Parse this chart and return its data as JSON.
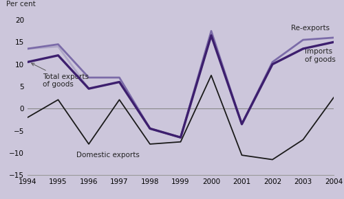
{
  "years": [
    1994,
    1995,
    1996,
    1997,
    1998,
    1999,
    2000,
    2001,
    2002,
    2003,
    2004
  ],
  "re_exports": [
    13.5,
    14.5,
    7.0,
    7.0,
    -4.5,
    -6.5,
    17.5,
    -3.5,
    10.5,
    15.5,
    16.0
  ],
  "imports_of_goods": [
    13.5,
    14.0,
    4.5,
    6.0,
    -4.5,
    -6.5,
    16.5,
    -3.5,
    10.0,
    13.5,
    15.0
  ],
  "total_exports": [
    10.5,
    12.0,
    4.5,
    6.0,
    -4.5,
    -6.5,
    16.5,
    -3.5,
    10.0,
    13.5,
    15.0
  ],
  "domestic_exports": [
    -2.0,
    2.0,
    -8.0,
    2.0,
    -8.0,
    -7.5,
    7.5,
    -10.5,
    -11.5,
    -7.0,
    2.5
  ],
  "color_re_exports": "#7b6ba8",
  "color_imports": "#b0a8c8",
  "color_total_exports": "#3d1f6e",
  "color_domestic": "#1a1a1a",
  "bg_color": "#ccc6db",
  "fig_color": "#ccc6db",
  "ylim": [
    -15,
    20
  ],
  "yticks": [
    -15,
    -10,
    -5,
    0,
    5,
    10,
    15,
    20
  ],
  "xlim": [
    1994,
    2004
  ],
  "ylabel": "Per cent",
  "label_re_exports": "Re-exports",
  "label_imports": "Imports\nof goods",
  "label_total": "Total exports\nof goods",
  "label_domestic": "Domestic exports",
  "zero_line_color": "#888888",
  "spine_color": "#999999",
  "tick_label_size": 7.5,
  "annotation_size": 7.5
}
